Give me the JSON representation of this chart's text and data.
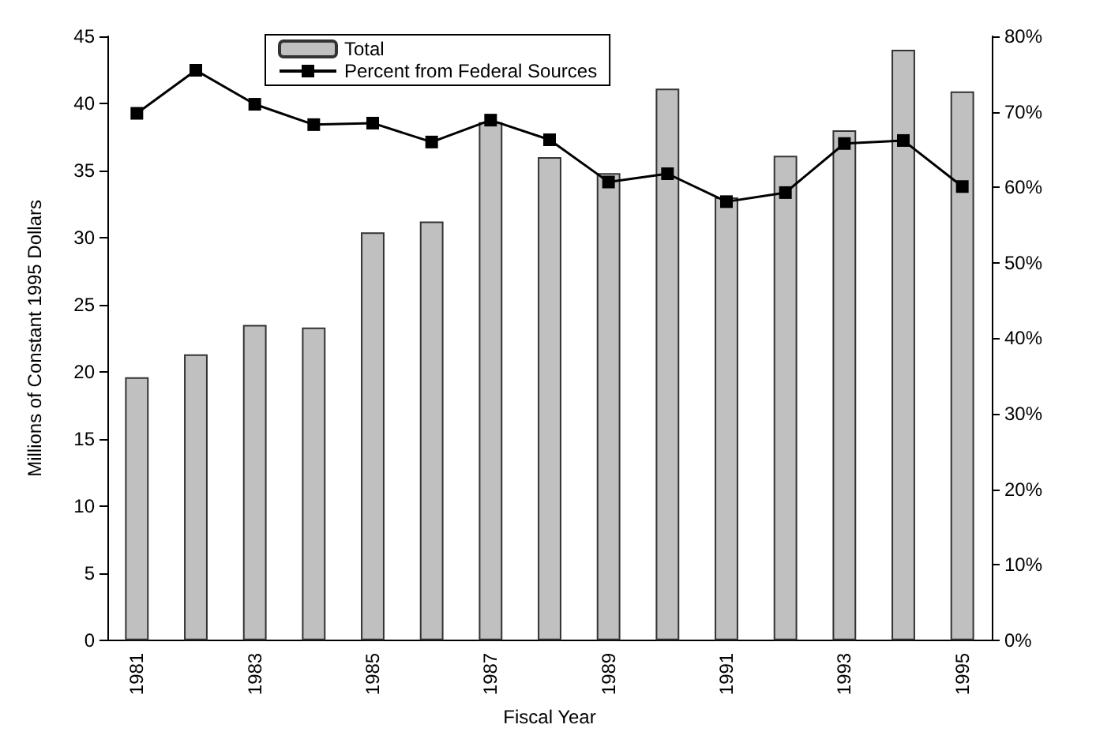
{
  "chart_data": {
    "type": "bar",
    "xlabel": "Fiscal Year",
    "ylabel": "Millions of Constant 1995 Dollars",
    "categories": [
      "1981",
      null,
      "1983",
      null,
      "1985",
      null,
      "1987",
      null,
      "1989",
      null,
      "1991",
      null,
      "1993",
      null,
      "1995"
    ],
    "series": [
      {
        "name": "Total",
        "color": "#c0c0c0",
        "values": [
          19.6,
          21.3,
          23.5,
          23.3,
          30.4,
          31.2,
          38.6,
          36.0,
          34.8,
          41.1,
          33.0,
          36.1,
          38.0,
          44.0,
          40.9
        ]
      },
      {
        "name": "Percent from Federal Sources",
        "type": "line",
        "axis": "y2",
        "color": "#000000",
        "values": [
          69.8,
          75.5,
          71.0,
          68.3,
          68.5,
          66.0,
          68.9,
          66.3,
          60.7,
          61.8,
          58.1,
          59.3,
          65.8,
          66.2,
          60.1
        ]
      }
    ],
    "ylim": [
      0,
      45
    ],
    "yticks": [
      0,
      5,
      10,
      15,
      20,
      25,
      30,
      35,
      40,
      45
    ],
    "y2lim": [
      0,
      80
    ],
    "y2ticks": [
      {
        "value": 0,
        "label": "0%"
      },
      {
        "value": 10,
        "label": "10%"
      },
      {
        "value": 20,
        "label": "20%"
      },
      {
        "value": 30,
        "label": "30%"
      },
      {
        "value": 40,
        "label": "40%"
      },
      {
        "value": 50,
        "label": "50%"
      },
      {
        "value": 60,
        "label": "60%"
      },
      {
        "value": 70,
        "label": "70%"
      },
      {
        "value": 80,
        "label": "80%"
      }
    ],
    "grid": false,
    "legend": "top",
    "marker": "square",
    "line_style": "solid"
  }
}
